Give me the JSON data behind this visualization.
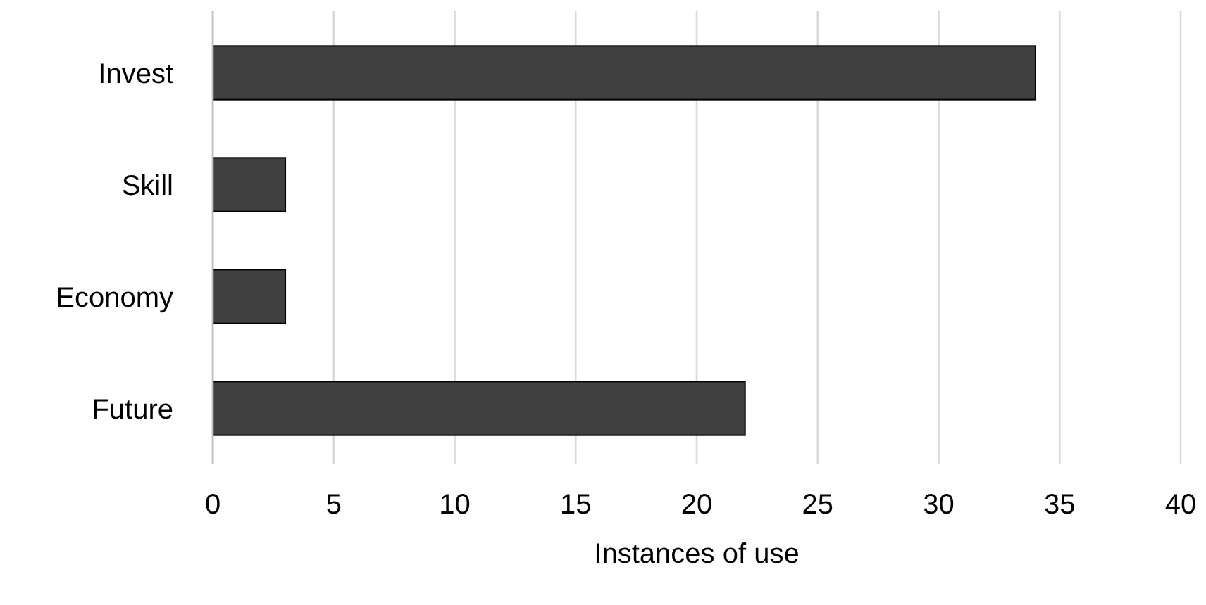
{
  "chart_data": {
    "type": "bar",
    "orientation": "horizontal",
    "xlabel": "Instances of use",
    "categories": [
      "Invest",
      "Skill",
      "Economy",
      "Future"
    ],
    "values": [
      34,
      3,
      3,
      22
    ],
    "color": "#404040",
    "xlim": [
      0,
      40
    ],
    "xticks": [
      0,
      5,
      10,
      15,
      20,
      25,
      30,
      35,
      40
    ],
    "grid": "x"
  }
}
